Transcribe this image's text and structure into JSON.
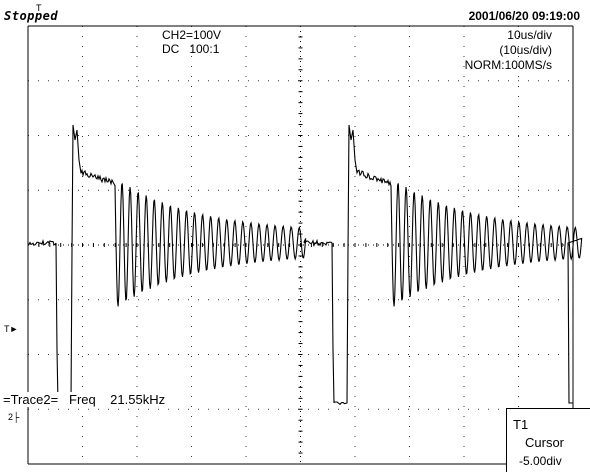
{
  "header": {
    "status": "Stopped",
    "datetime": "2001/06/20  09:19:00",
    "trigger_marker": "T"
  },
  "channel": {
    "scale": "CH2=100V",
    "coupling": "DC   100:1"
  },
  "timebase": {
    "main": "10us/div",
    "zoom": "(10us/div)",
    "mode": "NORM:100MS/s"
  },
  "measurement": {
    "text": "=Trace2=   Freq    21.55kHz"
  },
  "markers": {
    "trigger_level": "T",
    "channel_ground": "2"
  },
  "cursor_panel": {
    "title": "T1",
    "mode": "Cursor",
    "value": "-5.00div"
  },
  "colors": {
    "background": "#ffffff",
    "grid": "#000000",
    "trace": "#000000"
  }
}
